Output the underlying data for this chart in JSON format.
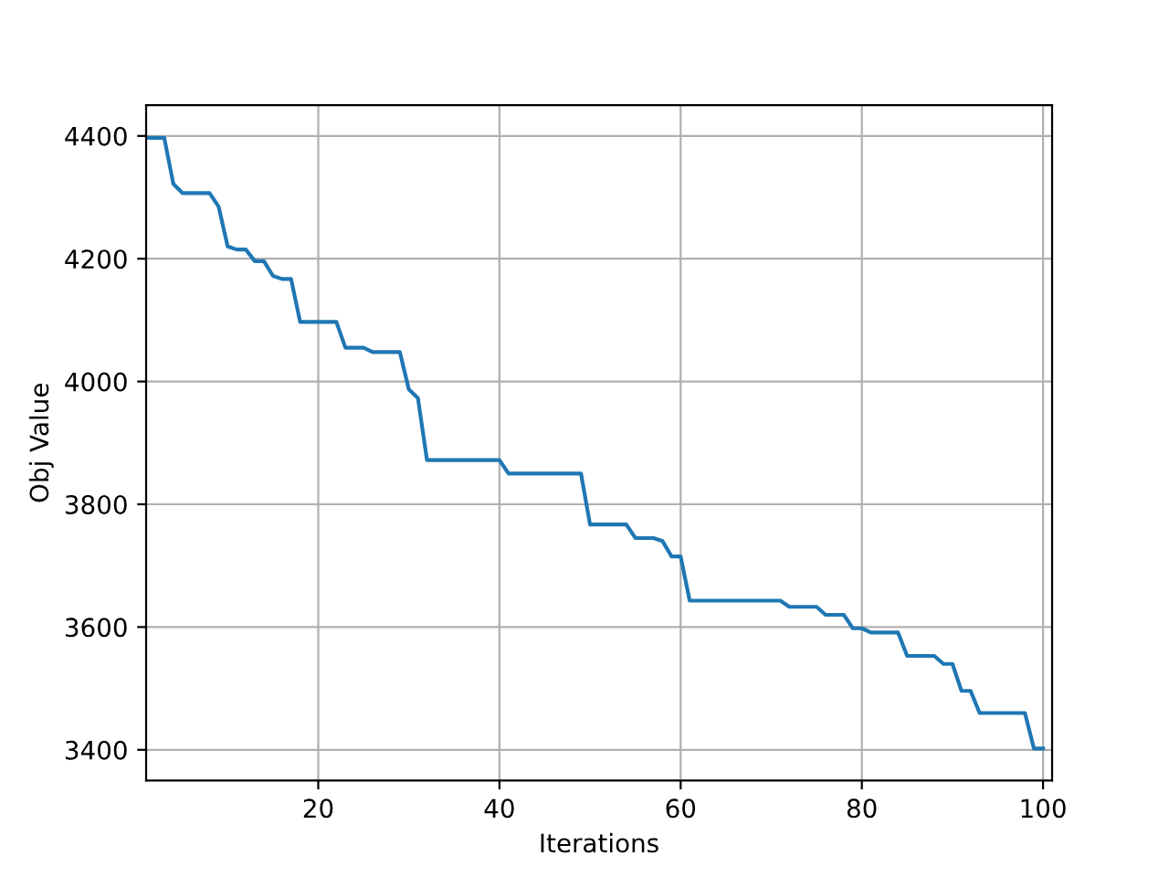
{
  "chart_data": {
    "type": "line",
    "xlabel": "Iterations",
    "ylabel": "Obj Value",
    "x": [
      1,
      2,
      3,
      4,
      5,
      6,
      7,
      8,
      9,
      10,
      11,
      12,
      13,
      14,
      15,
      16,
      17,
      18,
      19,
      20,
      21,
      22,
      23,
      24,
      25,
      26,
      27,
      28,
      29,
      30,
      31,
      32,
      33,
      34,
      35,
      36,
      37,
      38,
      39,
      40,
      41,
      42,
      43,
      44,
      45,
      46,
      47,
      48,
      49,
      50,
      51,
      52,
      53,
      54,
      55,
      56,
      57,
      58,
      59,
      60,
      61,
      62,
      63,
      64,
      65,
      66,
      67,
      68,
      69,
      70,
      71,
      72,
      73,
      74,
      75,
      76,
      77,
      78,
      79,
      80,
      81,
      82,
      83,
      84,
      85,
      86,
      87,
      88,
      89,
      90,
      91,
      92,
      93,
      94,
      95,
      96,
      97,
      98,
      99,
      100
    ],
    "series": [
      {
        "color": "#1f77b4",
        "values": [
          4397,
          4397,
          4397,
          4322,
          4307,
          4307,
          4307,
          4307,
          4285,
          4220,
          4215,
          4215,
          4196,
          4196,
          4172,
          4167,
          4167,
          4097,
          4097,
          4097,
          4097,
          4097,
          4055,
          4055,
          4055,
          4048,
          4048,
          4048,
          4048,
          3987,
          3973,
          3872,
          3872,
          3872,
          3872,
          3872,
          3872,
          3872,
          3872,
          3872,
          3850,
          3850,
          3850,
          3850,
          3850,
          3850,
          3850,
          3850,
          3850,
          3767,
          3767,
          3767,
          3767,
          3767,
          3745,
          3745,
          3745,
          3740,
          3715,
          3715,
          3643,
          3643,
          3643,
          3643,
          3643,
          3643,
          3643,
          3643,
          3643,
          3643,
          3643,
          3633,
          3633,
          3633,
          3633,
          3620,
          3620,
          3620,
          3598,
          3598,
          3591,
          3591,
          3591,
          3591,
          3553,
          3553,
          3553,
          3553,
          3540,
          3540,
          3496,
          3496,
          3460,
          3460,
          3460,
          3460,
          3460,
          3460,
          3402,
          3402
        ]
      }
    ],
    "xlim": [
      1,
      101
    ],
    "xticks": [
      20,
      40,
      60,
      80,
      100
    ],
    "ylim": [
      3350,
      4450
    ],
    "yticks": [
      3400,
      3600,
      3800,
      4000,
      4200,
      4400
    ],
    "grid": true,
    "marker": "none",
    "line_style": "solid"
  }
}
